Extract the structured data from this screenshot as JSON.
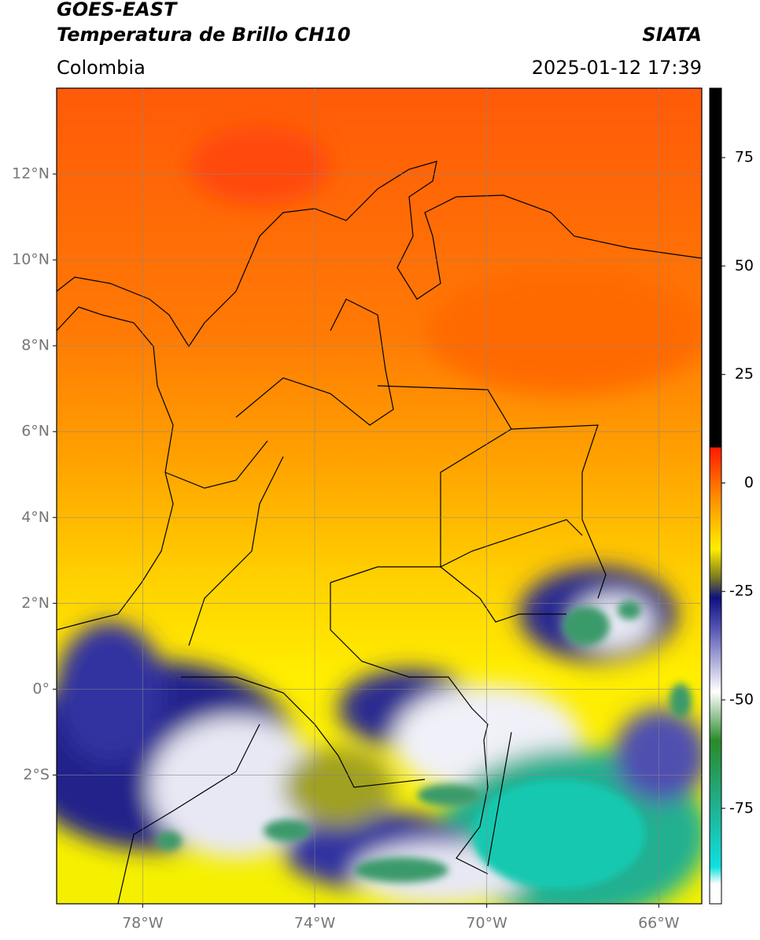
{
  "header": {
    "title": "GOES-EAST",
    "subtitle": "Temperatura de Brillo CH10",
    "region": "Colombia",
    "source": "SIATA",
    "datetime": "2025-01-12 17:39"
  },
  "map": {
    "xlim": [
      -80,
      -65
    ],
    "ylim": [
      -5,
      14
    ],
    "yticks": [
      {
        "value": 12,
        "label": "12°N"
      },
      {
        "value": 10,
        "label": "10°N"
      },
      {
        "value": 8,
        "label": "8°N"
      },
      {
        "value": 6,
        "label": "6°N"
      },
      {
        "value": 4,
        "label": "4°N"
      },
      {
        "value": 2,
        "label": "2°N"
      },
      {
        "value": 0,
        "label": "0°"
      },
      {
        "value": -2,
        "label": "2°S"
      }
    ],
    "xticks": [
      {
        "value": -78,
        "label": "78°W"
      },
      {
        "value": -74,
        "label": "74°W"
      },
      {
        "value": -70,
        "label": "70°W"
      },
      {
        "value": -66,
        "label": "66°W"
      }
    ]
  },
  "colorbar": {
    "lim": [
      -97,
      91
    ],
    "ticks": [
      75,
      50,
      25,
      0,
      -25,
      -50,
      -75
    ]
  }
}
